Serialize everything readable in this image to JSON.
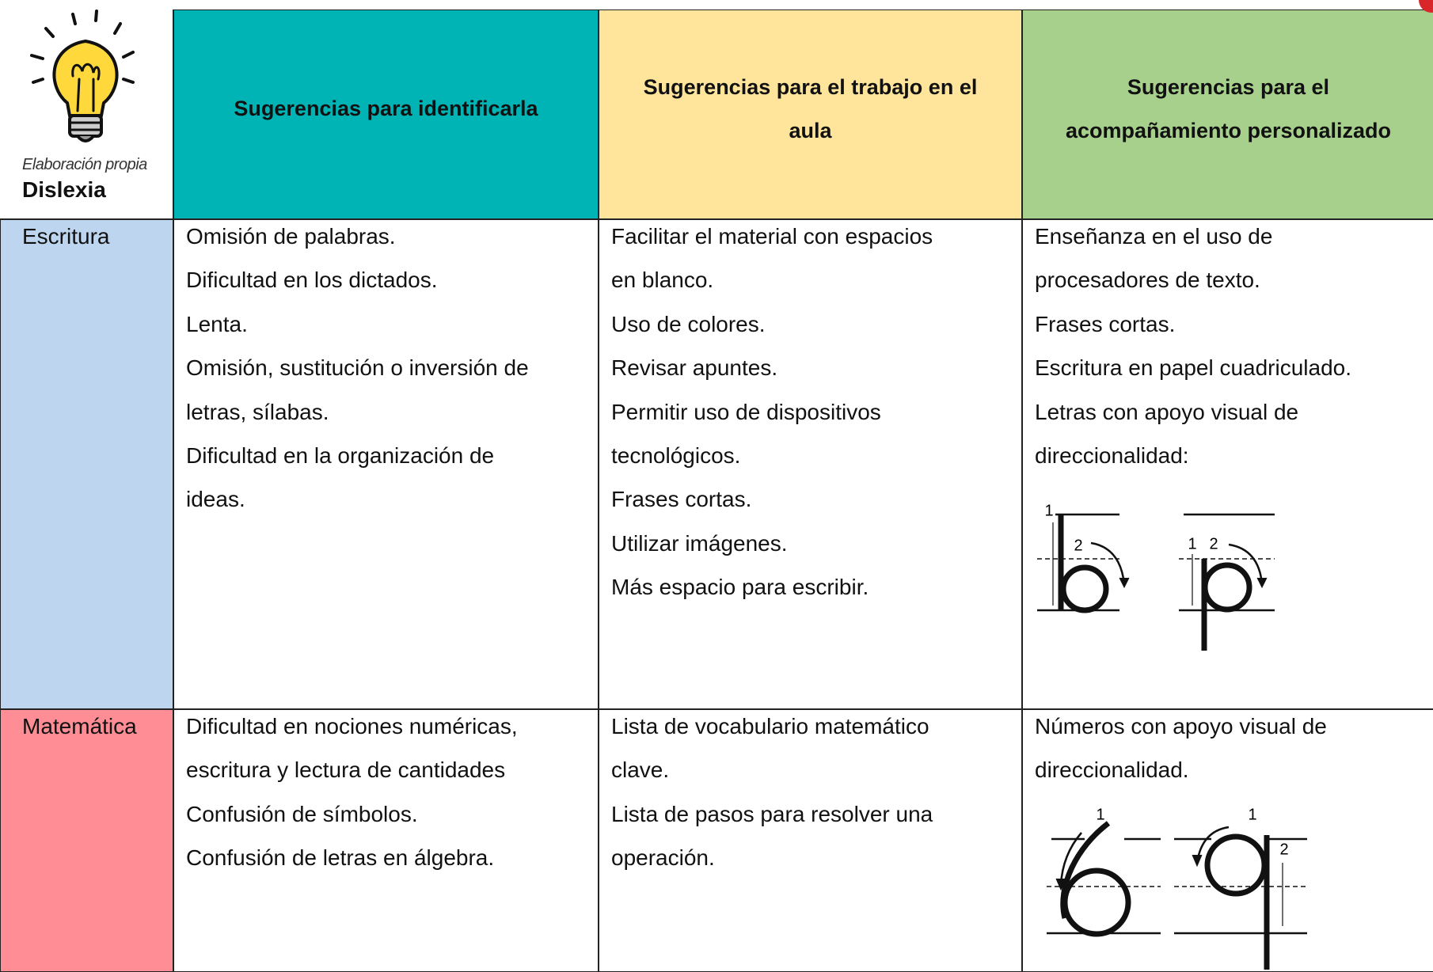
{
  "header": {
    "note": "Elaboración propia",
    "title": "Dislexia",
    "columns": [
      [
        "Sugerencias para identificarla"
      ],
      [
        "Sugerencias para el trabajo en el",
        "aula"
      ],
      [
        "Sugerencias para el",
        "acompañamiento personalizado"
      ]
    ]
  },
  "rows": [
    {
      "label": "Escritura",
      "cells": [
        [
          "Omisión de palabras.",
          "Dificultad en los dictados.",
          "Lenta.",
          "Omisión, sustitución o inversión de",
          "letras, sílabas.",
          "Dificultad en la organización de",
          "ideas."
        ],
        [
          "Facilitar el material con espacios",
          "en blanco.",
          "Uso de colores.",
          "Revisar apuntes.",
          "Permitir uso de dispositivos",
          "tecnológicos.",
          "Frases cortas.",
          "Utilizar imágenes.",
          "Más espacio para escribir."
        ],
        [
          "Enseñanza  en el uso de",
          "procesadores de texto.",
          "Frases cortas.",
          "Escritura en papel cuadriculado.",
          "Letras con apoyo visual de",
          "direccionalidad:"
        ]
      ]
    },
    {
      "label": "Matemática",
      "cells": [
        [
          "Dificultad en nociones numéricas,",
          "escritura y lectura de cantidades",
          "Confusión de símbolos.",
          "Confusión de letras en álgebra."
        ],
        [
          "Lista de vocabulario matemático",
          "clave.",
          "Lista de pasos para resolver una",
          "operación."
        ],
        [
          "Números con apoyo visual de",
          "direccionalidad."
        ]
      ]
    }
  ],
  "figures": {
    "letters": [
      [
        "1",
        "2"
      ],
      [
        "1",
        "2"
      ]
    ],
    "numbers": [
      [
        "1"
      ],
      [
        "1",
        "2"
      ]
    ]
  }
}
